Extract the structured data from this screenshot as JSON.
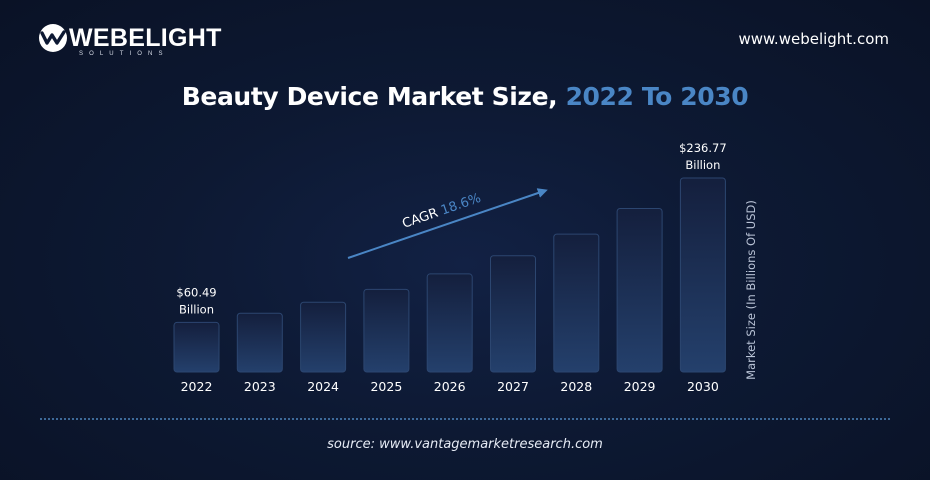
{
  "brand": {
    "logo_name": "WEBELIGHT",
    "logo_tagline": "SOLUTIONS",
    "website": "www.webelight.com"
  },
  "header": {
    "title_main": "Beauty Device Market Size,",
    "title_accent": "2022 To 2030"
  },
  "colors": {
    "accent": "#4a86c5",
    "background": "#0d1933",
    "bar_fill_top": "#16264a",
    "bar_fill_bottom": "#23406e",
    "bar_stroke": "#2c4670",
    "arrow": "#4a86c5"
  },
  "chart_data": {
    "type": "bar",
    "title": "Beauty Device Market Size, 2022 To 2030",
    "xlabel": "",
    "ylabel": "Market Size (In Billions Of USD)",
    "categories": [
      "2022",
      "2023",
      "2024",
      "2025",
      "2026",
      "2027",
      "2028",
      "2029",
      "2030"
    ],
    "values": [
      60.49,
      71.7,
      85.1,
      100.9,
      119.7,
      141.9,
      168.3,
      199.6,
      236.77
    ],
    "ylim": [
      0,
      250
    ],
    "grid": false,
    "data_labels": [
      {
        "category": "2022",
        "value_text": "$60.49",
        "unit_text": "Billion"
      },
      {
        "category": "2030",
        "value_text": "$236.77",
        "unit_text": "Billion"
      }
    ],
    "annotation": {
      "label": "CAGR",
      "value": "18.6%"
    }
  },
  "footer": {
    "source": "source: www.vantagemarketresearch.com"
  }
}
